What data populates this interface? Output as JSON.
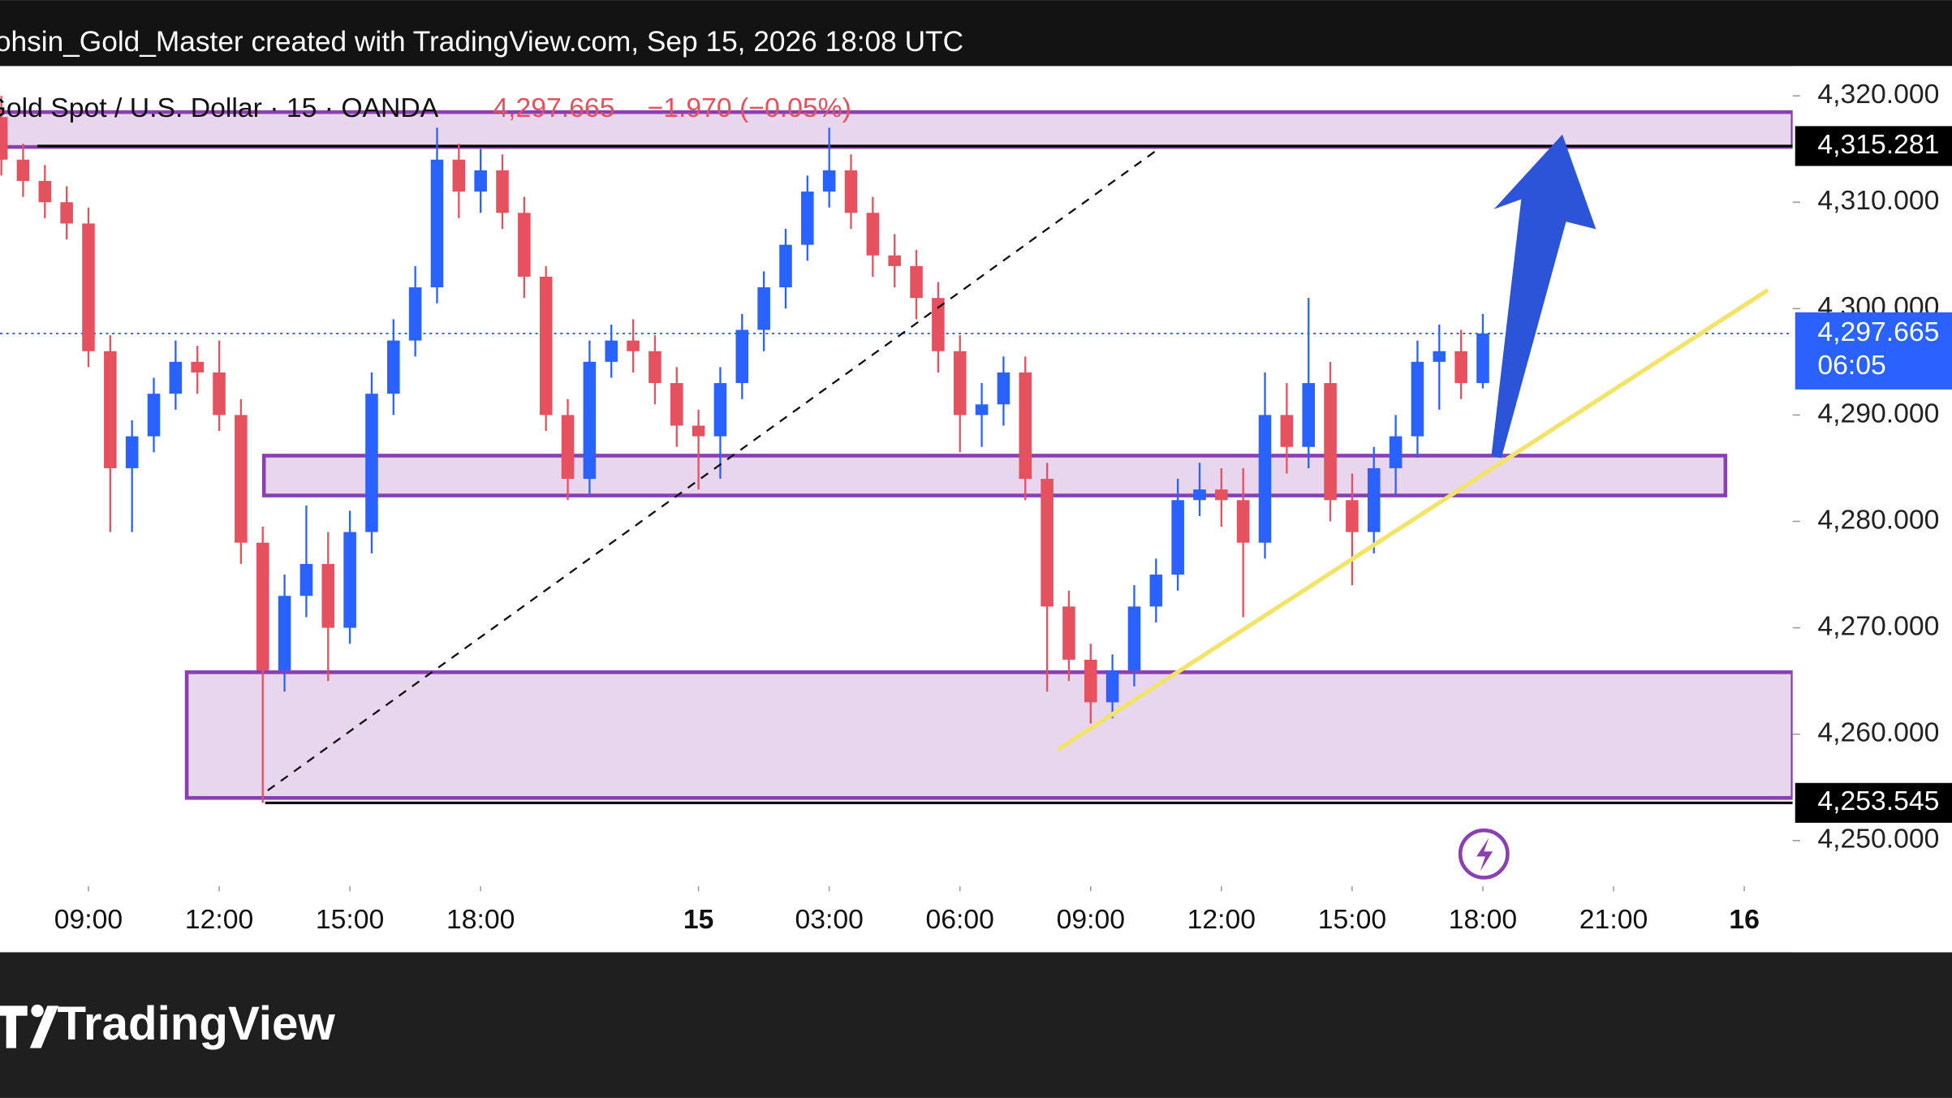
{
  "header": {
    "credit": "ohsin_Gold_Master created with TradingView.com, Sep 15, 2026 18:08 UTC",
    "symbol": "Gold Spot / U.S. Dollar · 15 · OANDA",
    "last": "4,297.665",
    "change": "−1.970 (−0.05%)"
  },
  "chart_data": {
    "type": "candlestick",
    "x": [
      7,
      7.5,
      8,
      8.5,
      9,
      9.5,
      10,
      10.5,
      11,
      11.5,
      12,
      12.5,
      13,
      13.5,
      14,
      14.5,
      15,
      15.5,
      16,
      16.5,
      17,
      17.5,
      18,
      18.5,
      19,
      19.5,
      20,
      20.5,
      21,
      21.5,
      22,
      22.5,
      23,
      23.5,
      24,
      24.5,
      25,
      25.5,
      26,
      26.5,
      27,
      27.5,
      28,
      28.5,
      29,
      29.5,
      30,
      30.5,
      31,
      31.5,
      32,
      32.5,
      33,
      33.5,
      34,
      34.5,
      35,
      35.5,
      36,
      36.5,
      37,
      37.5,
      38,
      38.5,
      39,
      39.5,
      40,
      40.5,
      41
    ],
    "open": [
      4318,
      4314,
      4312,
      4310,
      4308,
      4296,
      4285,
      4288,
      4292,
      4295,
      4294,
      4290,
      4278,
      4266,
      4273,
      4276,
      4270,
      4279,
      4292,
      4297,
      4302,
      4314,
      4311,
      4313,
      4309,
      4303,
      4290,
      4284,
      4295,
      4297,
      4296,
      4293,
      4289,
      4288,
      4293,
      4298,
      4302,
      4306,
      4311,
      4313,
      4309,
      4305,
      4304,
      4301,
      4296,
      4290,
      4291,
      4294,
      4284,
      4272,
      4267,
      4263,
      4266,
      4272,
      4275,
      4282,
      4283,
      4282,
      4278,
      4290,
      4287,
      4293,
      4282,
      4279,
      4285,
      4288,
      4295,
      4296,
      4293
    ],
    "high": [
      4320,
      4315.5,
      4313.5,
      4311.5,
      4309.5,
      4297.5,
      4289.5,
      4293.5,
      4297,
      4296.5,
      4297,
      4291.5,
      4279.5,
      4275,
      4281.5,
      4279,
      4281,
      4294,
      4299,
      4304,
      4317,
      4315.5,
      4315,
      4314.5,
      4310.5,
      4304,
      4291.5,
      4297,
      4298.5,
      4299,
      4297.5,
      4294.5,
      4290.5,
      4294.5,
      4299.5,
      4303.5,
      4307.5,
      4312.5,
      4317,
      4314.5,
      4310.5,
      4307,
      4305.5,
      4302.5,
      4297.5,
      4293,
      4295.5,
      4295.5,
      4285.5,
      4273.5,
      4268.5,
      4267.5,
      4274,
      4276.5,
      4284,
      4285.5,
      4285,
      4285,
      4294,
      4293,
      4301,
      4295,
      4284.5,
      4287,
      4290,
      4297,
      4298.5,
      4298,
      4299.5
    ],
    "low": [
      4312.5,
      4310.5,
      4308.5,
      4306.5,
      4294.5,
      4279,
      4279,
      4286.5,
      4290.5,
      4292,
      4288.5,
      4276,
      4253.545,
      4264,
      4271,
      4265,
      4268.5,
      4277,
      4290,
      4295.5,
      4300.5,
      4308.5,
      4309,
      4307.5,
      4301,
      4288.5,
      4282,
      4282.5,
      4293.5,
      4294,
      4291,
      4287,
      4283,
      4284,
      4291.5,
      4296,
      4300,
      4304.5,
      4309.5,
      4307.5,
      4303,
      4302,
      4299,
      4294,
      4286.5,
      4287,
      4289,
      4282,
      4264,
      4265,
      4261,
      4261.5,
      4264.5,
      4270.5,
      4273.5,
      4280.5,
      4279.5,
      4271,
      4276.5,
      4284.5,
      4285,
      4280,
      4274,
      4277,
      4282.5,
      4286,
      4290.5,
      4291.5,
      4292.5
    ],
    "close": [
      4314,
      4312,
      4310,
      4308,
      4296,
      4285,
      4288,
      4292,
      4295,
      4294,
      4290,
      4278,
      4266,
      4273,
      4276,
      4270,
      4279,
      4292,
      4297,
      4302,
      4314,
      4311,
      4313,
      4309,
      4303,
      4290,
      4284,
      4295,
      4297,
      4296,
      4293,
      4289,
      4288,
      4293,
      4298,
      4302,
      4306,
      4311,
      4313,
      4309,
      4305,
      4304,
      4301,
      4296,
      4290,
      4291,
      4294,
      4284,
      4272,
      4267,
      4263,
      4266,
      4272,
      4275,
      4282,
      4283,
      4282,
      4278,
      4290,
      4287,
      4293,
      4282,
      4279,
      4285,
      4288,
      4295,
      4296,
      4293,
      4297.665
    ],
    "up_color": "#2962ff",
    "down_color": "#e5515f",
    "xlim": [
      6.97,
      48.11
    ],
    "ylim": [
      4245.7,
      4322.8
    ],
    "xticks": [
      {
        "value": 9,
        "label": "09:00"
      },
      {
        "value": 12,
        "label": "12:00"
      },
      {
        "value": 15,
        "label": "15:00"
      },
      {
        "value": 18,
        "label": "18:00"
      },
      {
        "value": 23,
        "label": "15"
      },
      {
        "value": 26,
        "label": "03:00"
      },
      {
        "value": 29,
        "label": "06:00"
      },
      {
        "value": 32,
        "label": "09:00"
      },
      {
        "value": 35,
        "label": "12:00"
      },
      {
        "value": 38,
        "label": "15:00"
      },
      {
        "value": 41,
        "label": "18:00"
      },
      {
        "value": 44,
        "label": "21:00"
      },
      {
        "value": 47,
        "label": "16"
      }
    ],
    "yticks": [
      {
        "value": 4250,
        "label": "4,250.000"
      },
      {
        "value": 4260,
        "label": "4,260.000"
      },
      {
        "value": 4270,
        "label": "4,270.000"
      },
      {
        "value": 4280,
        "label": "4,280.000"
      },
      {
        "value": 4290,
        "label": "4,290.000"
      },
      {
        "value": 4300,
        "label": "4,300.000"
      },
      {
        "value": 4310,
        "label": "4,310.000"
      },
      {
        "value": 4320,
        "label": "4,320.000"
      }
    ],
    "price_lines": [
      {
        "value": 4315.281,
        "label": "4,315.281"
      },
      {
        "value": 4253.545,
        "label": "4,253.545"
      }
    ],
    "last_price": {
      "value": 4297.665,
      "label": "4,297.665",
      "countdown": "06:05"
    }
  },
  "footer": {
    "brand": "TradingView"
  }
}
